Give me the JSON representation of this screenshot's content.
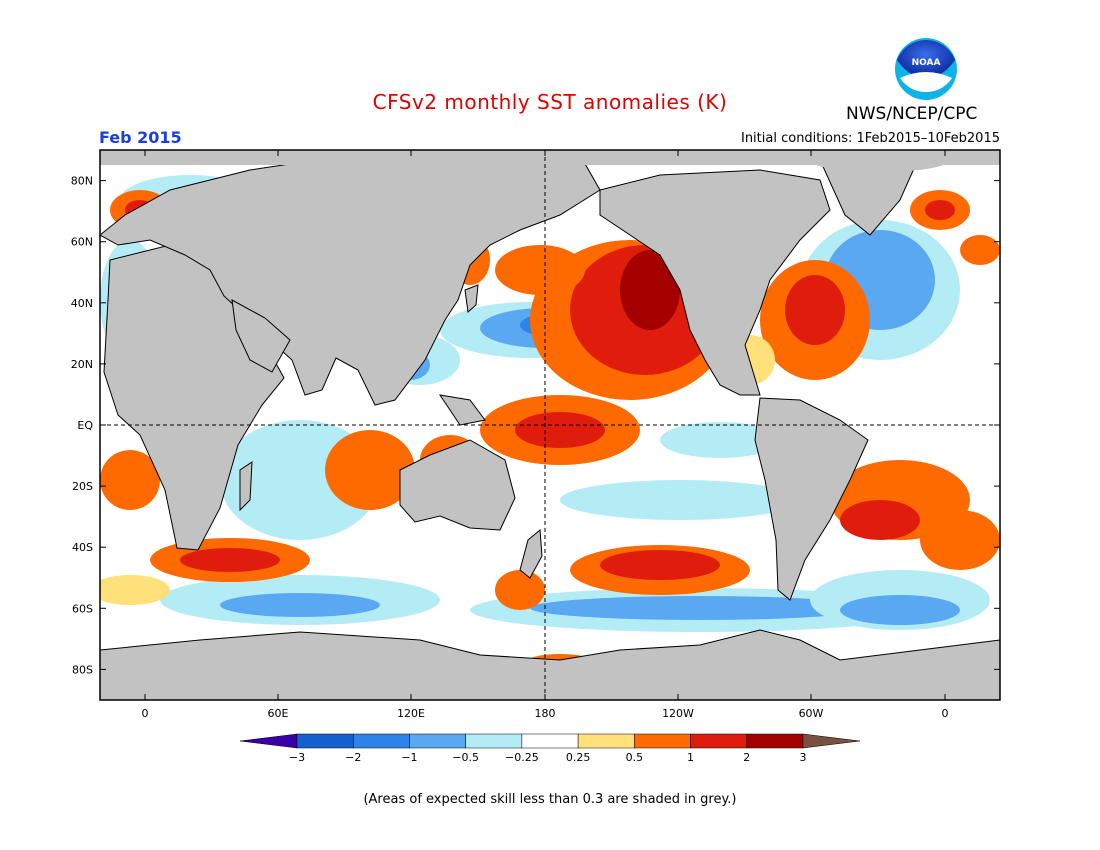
{
  "header": {
    "title": "CFSv2 monthly SST anomalies (K)",
    "org": "NWS/NCEP/CPC",
    "logo_text": "NOAA",
    "month": "Feb 2015",
    "initial_conditions": "Initial conditions: 1Feb2015–10Feb2015"
  },
  "axes": {
    "lat_labels": [
      "80N",
      "60N",
      "40N",
      "20N",
      "EQ",
      "20S",
      "40S",
      "60S",
      "80S"
    ],
    "lon_labels": [
      "0",
      "60E",
      "120E",
      "180",
      "120W",
      "60W",
      "0"
    ]
  },
  "legend": {
    "ticks": [
      "−3",
      "−2",
      "−1",
      "−0.5",
      "−0.25",
      "0.25",
      "0.5",
      "1",
      "2",
      "3"
    ],
    "colors": [
      "#3a00a8",
      "#1560d0",
      "#2d83e8",
      "#5aa7f2",
      "#b4ecf6",
      "#ffffff",
      "#ffe07a",
      "#ff6a00",
      "#e01d0d",
      "#a50000",
      "#7a5040"
    ]
  },
  "note": "(Areas of expected skill less than 0.3 are shaded in grey.)",
  "colors": {
    "land": "#c2c2c2",
    "title": "#e00000",
    "month": "#1a3ee0"
  }
}
